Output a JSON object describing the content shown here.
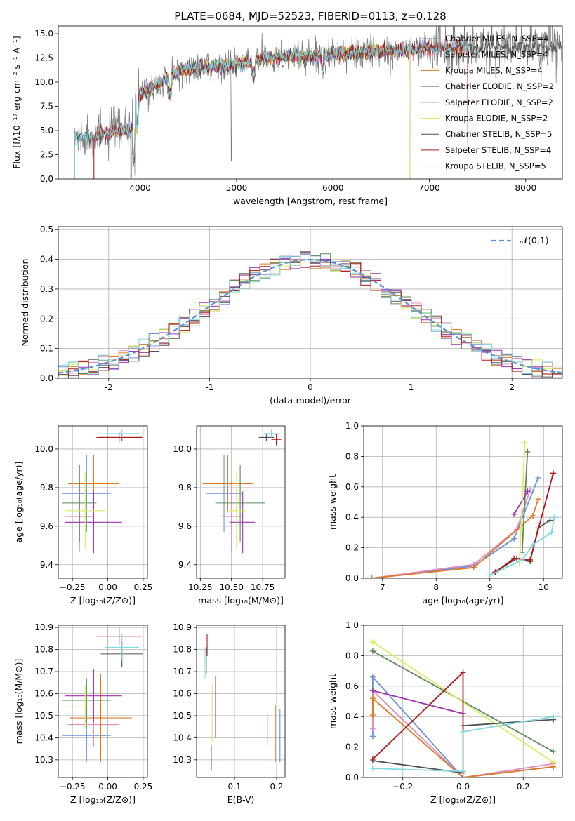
{
  "chart_data": [
    {
      "type": "line",
      "title": "PLATE=0684, MJD=52523, FIBERID=0113, z=0.128",
      "xlabel": "wavelength [Angstrom, rest frame]",
      "ylabel": "Flux [fλ10⁻¹⁷ erg cm⁻² s⁻¹ A⁻¹]",
      "xlim": [
        3150,
        8380
      ],
      "ylim": [
        0,
        15.8
      ],
      "xticks": [
        4000,
        5000,
        6000,
        7000,
        8000
      ],
      "yticks": [
        0.0,
        2.5,
        5.0,
        7.5,
        10.0,
        12.5,
        15.0
      ],
      "grid": false,
      "legend_position": "upper-right",
      "series": [
        {
          "name": "Chabrier MILES, N_SSP=4",
          "color": "#6890d8",
          "wmin": 3520,
          "wmax": 7400
        },
        {
          "name": "Salpeter MILES, N_SSP=4",
          "color": "#e08cc0",
          "wmin": 3520,
          "wmax": 7400
        },
        {
          "name": "Kroupa MILES, N_SSP=4",
          "color": "#e07820",
          "wmin": 3520,
          "wmax": 7400
        },
        {
          "name": "Chabrier ELODIE, N_SSP=2",
          "color": "#5a8a5a",
          "wmin": 3900,
          "wmax": 6800
        },
        {
          "name": "Salpeter ELODIE, N_SSP=2",
          "color": "#a030b0",
          "wmin": 3900,
          "wmax": 6800
        },
        {
          "name": "Kroupa ELODIE, N_SSP=2",
          "color": "#d8ec60",
          "wmin": 3900,
          "wmax": 6800
        },
        {
          "name": "Chabrier STELIB, N_SSP=5",
          "color": "#505050",
          "wmin": 3320,
          "wmax": 8380
        },
        {
          "name": "Salpeter STELIB, N_SSP=4",
          "color": "#b01818",
          "wmin": 3520,
          "wmax": 7400
        },
        {
          "name": "Kroupa STELIB, N_SSP=5",
          "color": "#80d8e0",
          "wmin": 3320,
          "wmax": 7400
        }
      ],
      "data_series": "Chabrier STELIB, N_SSP=5",
      "data_color": "#7a7a7a"
    },
    {
      "type": "histogram",
      "xlabel": "(data-model)/error",
      "ylabel": "Normed distribution",
      "xlim": [
        -2.5,
        2.5
      ],
      "ylim": [
        0,
        0.51
      ],
      "xticks": [
        -2,
        -1,
        0,
        1,
        2
      ],
      "yticks": [
        0.0,
        0.1,
        0.2,
        0.3,
        0.4,
        0.5
      ],
      "grid": true,
      "bin_width": 0.1,
      "legend": [
        {
          "name": "𝒩(0,1)",
          "color": "#5b8fd9",
          "style": "dashed"
        }
      ],
      "legend_position": "upper-right",
      "normal_curve": {
        "mean": 0,
        "sigma": 1
      }
    },
    {
      "type": "errorbar",
      "xlabel": "Z [log₁₀(Z/Z⊙)]",
      "ylabel": "age  [log₁₀(age/yr)]",
      "xlim": [
        -0.35,
        0.28
      ],
      "ylim": [
        9.33,
        10.12
      ],
      "xticks": [
        -0.25,
        0.0,
        0.25
      ],
      "xtick_labels": [
        "−0.25",
        "0.00",
        "0.25"
      ],
      "yticks": [
        9.4,
        9.6,
        9.8,
        10.0
      ],
      "grid": true,
      "points": [
        {
          "color": "#6890d8",
          "x": -0.15,
          "xerr": 0.17,
          "y": 9.77,
          "yerr": 0.2
        },
        {
          "color": "#e08cc0",
          "x": -0.2,
          "xerr": 0.1,
          "y": 9.65,
          "yerr": 0.18
        },
        {
          "color": "#e07820",
          "x": -0.1,
          "xerr": 0.18,
          "y": 9.82,
          "yerr": 0.15
        },
        {
          "color": "#5a8a5a",
          "x": -0.2,
          "xerr": 0.12,
          "y": 9.72,
          "yerr": 0.2
        },
        {
          "color": "#a030b0",
          "x": -0.1,
          "xerr": 0.2,
          "y": 9.62,
          "yerr": 0.16
        },
        {
          "color": "#d8ec60",
          "x": -0.16,
          "xerr": 0.14,
          "y": 9.68,
          "yerr": 0.2
        },
        {
          "color": "#505050",
          "x": 0.1,
          "xerr": 0.15,
          "y": 10.06,
          "yerr": 0.02
        },
        {
          "color": "#b01818",
          "x": 0.08,
          "xerr": 0.16,
          "y": 10.06,
          "yerr": 0.03
        },
        {
          "color": "#80d8e0",
          "x": 0.1,
          "xerr": 0.12,
          "y": 10.08,
          "yerr": 0.02
        }
      ]
    },
    {
      "type": "errorbar",
      "xlabel": "mass [log₁₀(M/M⊙)]",
      "ylabel": "",
      "xlim": [
        10.22,
        10.93
      ],
      "ylim": [
        9.33,
        10.12
      ],
      "xticks": [
        10.25,
        10.5,
        10.75
      ],
      "xtick_labels": [
        "10.25",
        "10.50",
        "10.75"
      ],
      "yticks": [
        9.4,
        9.6,
        9.8,
        10.0
      ],
      "grid": true,
      "points": [
        {
          "color": "#6890d8",
          "x": 10.44,
          "xerr": 0.14,
          "y": 9.77,
          "yerr": 0.2
        },
        {
          "color": "#e08cc0",
          "x": 10.5,
          "xerr": 0.08,
          "y": 9.65,
          "yerr": 0.18
        },
        {
          "color": "#e07820",
          "x": 10.47,
          "xerr": 0.2,
          "y": 9.82,
          "yerr": 0.15
        },
        {
          "color": "#5a8a5a",
          "x": 10.57,
          "xerr": 0.2,
          "y": 9.72,
          "yerr": 0.2
        },
        {
          "color": "#a030b0",
          "x": 10.59,
          "xerr": 0.1,
          "y": 9.62,
          "yerr": 0.16
        },
        {
          "color": "#d8ec60",
          "x": 10.54,
          "xerr": 0.08,
          "y": 9.68,
          "yerr": 0.2
        },
        {
          "color": "#505050",
          "x": 10.78,
          "xerr": 0.06,
          "y": 10.06,
          "yerr": 0.02
        },
        {
          "color": "#b01818",
          "x": 10.86,
          "xerr": 0.04,
          "y": 10.05,
          "yerr": 0.03
        },
        {
          "color": "#80d8e0",
          "x": 10.82,
          "xerr": 0.06,
          "y": 10.08,
          "yerr": 0.02
        }
      ]
    },
    {
      "type": "line",
      "xlabel": "age  [log₁₀(age/yr)]",
      "ylabel": "mass weight",
      "xlim": [
        6.65,
        10.35
      ],
      "ylim": [
        0,
        1.0
      ],
      "xticks": [
        7,
        8,
        9,
        10
      ],
      "yticks": [
        0.0,
        0.2,
        0.4,
        0.6,
        0.8,
        1.0
      ],
      "grid": true,
      "series": [
        {
          "color": "#6890d8",
          "x": [
            9.9,
            9.45,
            8.7,
            6.8
          ],
          "y": [
            0.66,
            0.26,
            0.08,
            0.0
          ]
        },
        {
          "color": "#e08cc0",
          "x": [
            9.75,
            9.5,
            8.7,
            6.8
          ],
          "y": [
            0.58,
            0.32,
            0.09,
            0.0
          ]
        },
        {
          "color": "#e07820",
          "x": [
            9.9,
            9.8,
            8.7,
            6.8
          ],
          "y": [
            0.52,
            0.41,
            0.07,
            0.0
          ]
        },
        {
          "color": "#5a8a5a",
          "x": [
            9.7,
            9.6
          ],
          "y": [
            0.83,
            0.17
          ]
        },
        {
          "color": "#a030b0",
          "x": [
            9.7,
            9.45
          ],
          "y": [
            0.57,
            0.42
          ]
        },
        {
          "color": "#d8ec60",
          "x": [
            9.65,
            9.55
          ],
          "y": [
            0.89,
            0.1
          ]
        },
        {
          "color": "#505050",
          "x": [
            10.12,
            9.9,
            9.75,
            9.5,
            9.1
          ],
          "y": [
            0.38,
            0.33,
            0.11,
            0.13,
            0.04
          ]
        },
        {
          "color": "#b01818",
          "x": [
            10.18,
            9.75,
            9.45,
            9.1
          ],
          "y": [
            0.69,
            0.12,
            0.13,
            0.04
          ]
        },
        {
          "color": "#80d8e0",
          "x": [
            10.2,
            10.15,
            9.8,
            9.6,
            9.0
          ],
          "y": [
            0.4,
            0.3,
            0.22,
            0.12,
            0.02
          ]
        }
      ]
    },
    {
      "type": "errorbar",
      "xlabel": "Z [log₁₀(Z/Z⊙)]",
      "ylabel": "mass [log₁₀(M/M⊙)]",
      "xlim": [
        -0.35,
        0.28
      ],
      "ylim": [
        10.22,
        10.91
      ],
      "xticks": [
        -0.25,
        0.0,
        0.25
      ],
      "xtick_labels": [
        "−0.25",
        "0.00",
        "0.25"
      ],
      "yticks": [
        10.3,
        10.4,
        10.5,
        10.6,
        10.7,
        10.8,
        10.9
      ],
      "grid": true,
      "points": [
        {
          "color": "#6890d8",
          "x": -0.15,
          "xerr": 0.17,
          "y": 10.41,
          "yerr": 0.12
        },
        {
          "color": "#e08cc0",
          "x": -0.1,
          "xerr": 0.18,
          "y": 10.46,
          "yerr": 0.1
        },
        {
          "color": "#e07820",
          "x": -0.05,
          "xerr": 0.22,
          "y": 10.49,
          "yerr": 0.2
        },
        {
          "color": "#5a8a5a",
          "x": -0.15,
          "xerr": 0.17,
          "y": 10.57,
          "yerr": 0.1
        },
        {
          "color": "#a030b0",
          "x": -0.1,
          "xerr": 0.2,
          "y": 10.59,
          "yerr": 0.12
        },
        {
          "color": "#d8ec60",
          "x": -0.16,
          "xerr": 0.14,
          "y": 10.54,
          "yerr": 0.1
        },
        {
          "color": "#505050",
          "x": 0.1,
          "xerr": 0.15,
          "y": 10.78,
          "yerr": 0.06
        },
        {
          "color": "#b01818",
          "x": 0.08,
          "xerr": 0.16,
          "y": 10.86,
          "yerr": 0.04
        },
        {
          "color": "#80d8e0",
          "x": 0.1,
          "xerr": 0.12,
          "y": 10.81,
          "yerr": 0.06
        }
      ]
    },
    {
      "type": "errorbar",
      "xlabel": "E(B-V)",
      "ylabel": "",
      "xlim": [
        0.01,
        0.22
      ],
      "ylim": [
        10.22,
        10.91
      ],
      "xticks": [
        0.1,
        0.2
      ],
      "xtick_labels": [
        "0.1",
        "0.2"
      ],
      "yticks": [
        10.3,
        10.4,
        10.5,
        10.6,
        10.7,
        10.8,
        10.9
      ],
      "grid": true,
      "points": [
        {
          "color": "#6890d8",
          "x": 0.208,
          "xerr": 0,
          "y": 10.41,
          "yerr": 0.12
        },
        {
          "color": "#e08cc0",
          "x": 0.178,
          "xerr": 0,
          "y": 10.44,
          "yerr": 0.07
        },
        {
          "color": "#e07820",
          "x": 0.197,
          "xerr": 0,
          "y": 10.42,
          "yerr": 0.13
        },
        {
          "color": "#5a8a5a",
          "x": 0.045,
          "xerr": 0,
          "y": 10.31,
          "yerr": 0.06
        },
        {
          "color": "#a030b0",
          "x": 0.055,
          "xerr": 0,
          "y": 10.54,
          "yerr": 0.14
        },
        {
          "color": "#d8ec60",
          "x": 0.047,
          "xerr": 0,
          "y": 10.51,
          "yerr": 0.13
        },
        {
          "color": "#505050",
          "x": 0.033,
          "xerr": 0,
          "y": 10.75,
          "yerr": 0.06
        },
        {
          "color": "#b01818",
          "x": 0.035,
          "xerr": 0,
          "y": 10.82,
          "yerr": 0.05
        },
        {
          "color": "#80d8e0",
          "x": 0.03,
          "xerr": 0,
          "y": 10.74,
          "yerr": 0.07
        }
      ]
    },
    {
      "type": "line",
      "xlabel": "Z [log₁₀(Z/Z⊙)]",
      "ylabel": "mass weight",
      "xlim": [
        -0.33,
        0.33
      ],
      "ylim": [
        0,
        1.0
      ],
      "xticks": [
        -0.2,
        0.0,
        0.2
      ],
      "xtick_labels": [
        "−0.2",
        "0.0",
        "0.2"
      ],
      "yticks": [
        0.0,
        0.2,
        0.4,
        0.6,
        0.8,
        1.0
      ],
      "grid": true,
      "series": [
        {
          "color": "#6890d8",
          "x": [
            -0.3,
            -0.3,
            0.0,
            0.3
          ],
          "y": [
            0.27,
            0.66,
            0.0,
            0.07
          ]
        },
        {
          "color": "#e08cc0",
          "x": [
            -0.3,
            -0.3,
            0.0,
            0.3
          ],
          "y": [
            0.32,
            0.57,
            0.0,
            0.09
          ]
        },
        {
          "color": "#e07820",
          "x": [
            -0.3,
            -0.3,
            0.0,
            0.3
          ],
          "y": [
            0.41,
            0.52,
            0.0,
            0.07
          ]
        },
        {
          "color": "#5a8a5a",
          "x": [
            -0.3,
            0.3
          ],
          "y": [
            0.83,
            0.17
          ]
        },
        {
          "color": "#a030b0",
          "x": [
            -0.3,
            0.0
          ],
          "y": [
            0.57,
            0.42
          ]
        },
        {
          "color": "#d8ec60",
          "x": [
            -0.3,
            0.3
          ],
          "y": [
            0.89,
            0.1
          ]
        },
        {
          "color": "#505050",
          "x": [
            -0.3,
            0.0,
            0.0,
            0.3
          ],
          "y": [
            0.11,
            0.03,
            0.34,
            0.38
          ]
        },
        {
          "color": "#b01818",
          "x": [
            -0.3,
            0.0,
            0.0
          ],
          "y": [
            0.12,
            0.69,
            0.04
          ]
        },
        {
          "color": "#80d8e0",
          "x": [
            -0.3,
            0.0,
            0.0,
            0.3
          ],
          "y": [
            0.06,
            0.04,
            0.3,
            0.4
          ]
        }
      ]
    }
  ]
}
